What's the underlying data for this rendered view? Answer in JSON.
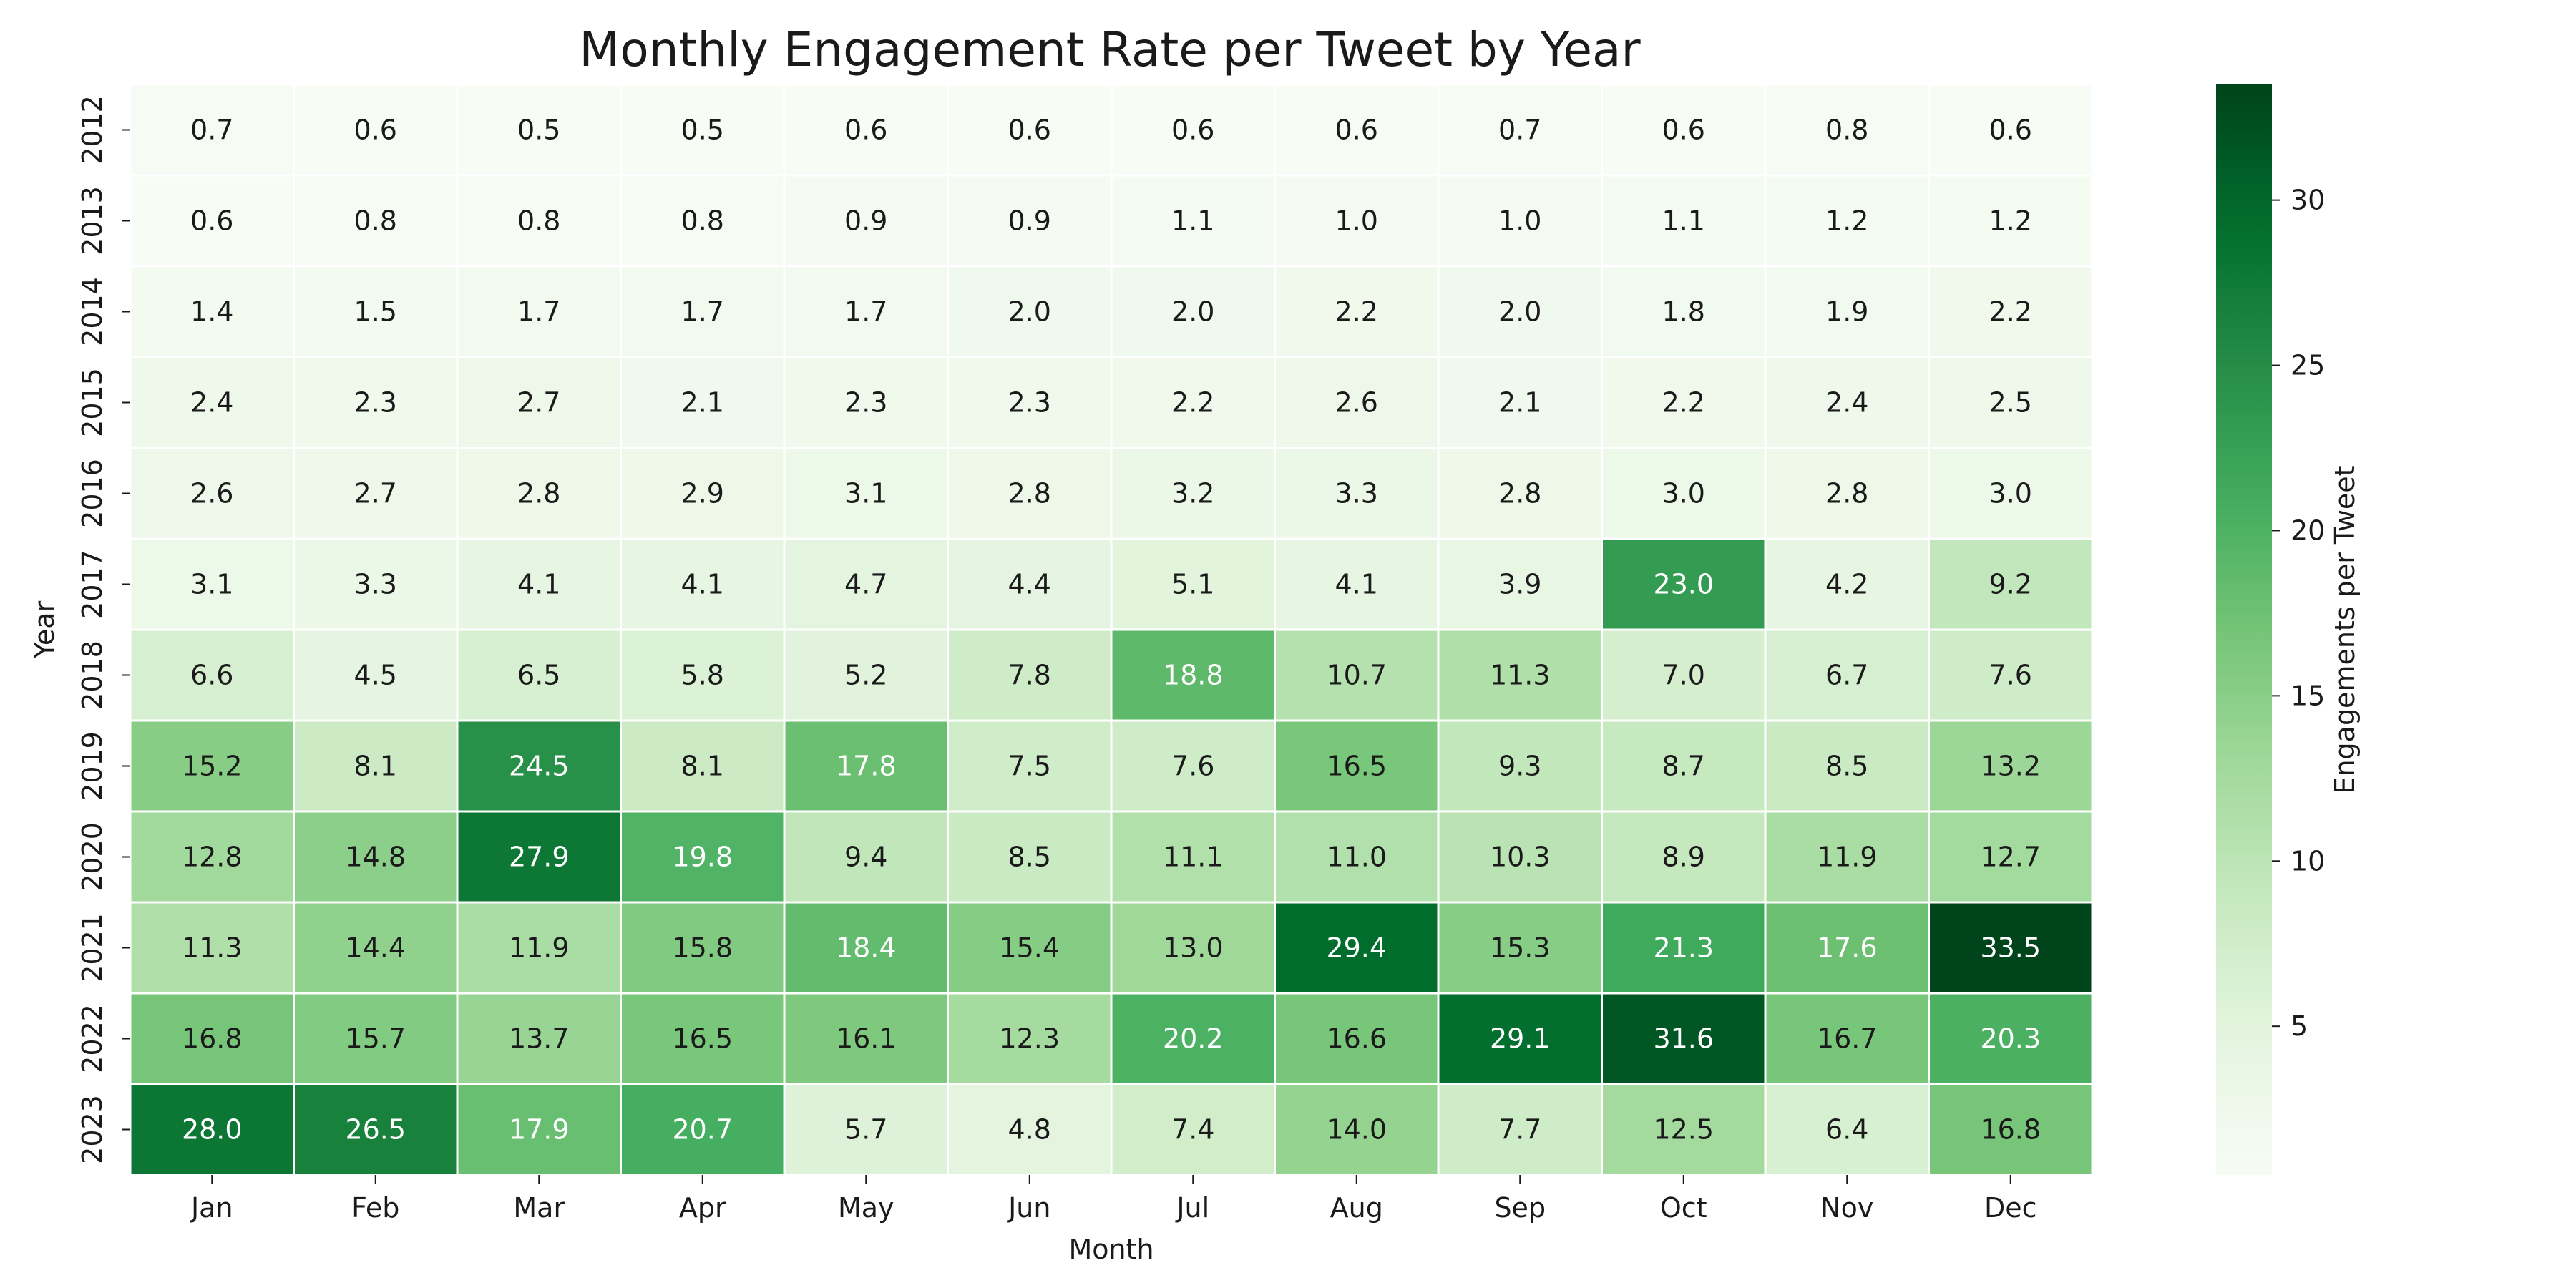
{
  "chart_data": {
    "type": "heatmap",
    "title": "Monthly Engagement Rate per Tweet by Year",
    "xlabel": "Month",
    "ylabel": "Year",
    "x_categories": [
      "Jan",
      "Feb",
      "Mar",
      "Apr",
      "May",
      "Jun",
      "Jul",
      "Aug",
      "Sep",
      "Oct",
      "Nov",
      "Dec"
    ],
    "y_categories": [
      "2012",
      "2013",
      "2014",
      "2015",
      "2016",
      "2017",
      "2018",
      "2019",
      "2020",
      "2021",
      "2022",
      "2023"
    ],
    "values": [
      [
        0.7,
        0.6,
        0.5,
        0.5,
        0.6,
        0.6,
        0.6,
        0.6,
        0.7,
        0.6,
        0.8,
        0.6
      ],
      [
        0.6,
        0.8,
        0.8,
        0.8,
        0.9,
        0.9,
        1.1,
        1.0,
        1.0,
        1.1,
        1.2,
        1.2
      ],
      [
        1.4,
        1.5,
        1.7,
        1.7,
        1.7,
        2.0,
        2.0,
        2.2,
        2.0,
        1.8,
        1.9,
        2.2
      ],
      [
        2.4,
        2.3,
        2.7,
        2.1,
        2.3,
        2.3,
        2.2,
        2.6,
        2.1,
        2.2,
        2.4,
        2.5
      ],
      [
        2.6,
        2.7,
        2.8,
        2.9,
        3.1,
        2.8,
        3.2,
        3.3,
        2.8,
        3.0,
        2.8,
        3.0
      ],
      [
        3.1,
        3.3,
        4.1,
        4.1,
        4.7,
        4.4,
        5.1,
        4.1,
        3.9,
        23.0,
        4.2,
        9.2
      ],
      [
        6.6,
        4.5,
        6.5,
        5.8,
        5.2,
        7.8,
        18.8,
        10.7,
        11.3,
        7.0,
        6.7,
        7.6
      ],
      [
        15.2,
        8.1,
        24.5,
        8.1,
        17.8,
        7.5,
        7.6,
        16.5,
        9.3,
        8.7,
        8.5,
        13.2
      ],
      [
        12.8,
        14.8,
        27.9,
        19.8,
        9.4,
        8.5,
        11.1,
        11.0,
        10.3,
        8.9,
        11.9,
        12.7
      ],
      [
        11.3,
        14.4,
        11.9,
        15.8,
        18.4,
        15.4,
        13.0,
        29.4,
        15.3,
        21.3,
        17.6,
        33.5
      ],
      [
        16.8,
        15.7,
        13.7,
        16.5,
        16.1,
        12.3,
        20.2,
        16.6,
        29.1,
        31.6,
        16.7,
        20.3
      ],
      [
        28.0,
        26.5,
        17.9,
        20.7,
        5.7,
        4.8,
        7.4,
        14.0,
        7.7,
        12.5,
        6.4,
        16.8
      ]
    ],
    "value_format": "0.1f",
    "colormap": "Greens",
    "colorbar": {
      "label": "Engagements per Tweet",
      "range": [
        0.5,
        33.5
      ],
      "ticks": [
        5,
        10,
        15,
        20,
        25,
        30
      ]
    },
    "grid": false
  }
}
